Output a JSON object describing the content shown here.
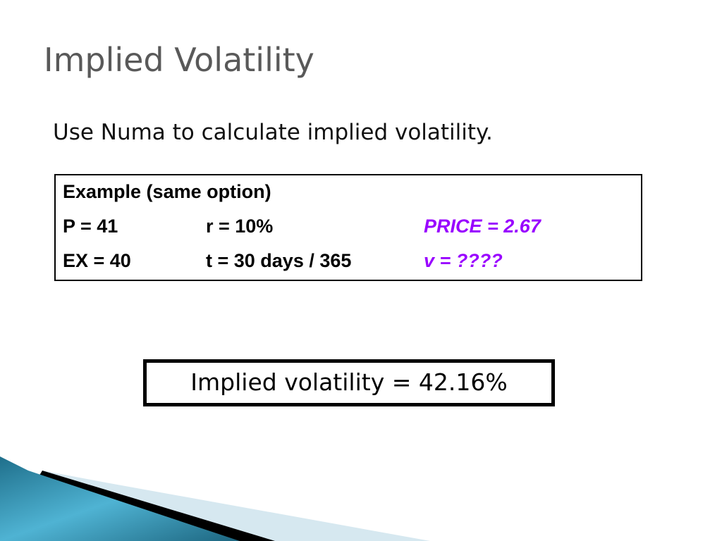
{
  "title": "Implied Volatility",
  "subtitle": "Use Numa to calculate implied volatility.",
  "table": {
    "header": "Example (same option)",
    "rows": [
      [
        "P = 41",
        "r = 10%",
        "PRICE = 2.67"
      ],
      [
        "EX = 40",
        "t = 30 days / 365",
        "v = ????"
      ]
    ]
  },
  "result": "Implied volatility = 42.16%"
}
